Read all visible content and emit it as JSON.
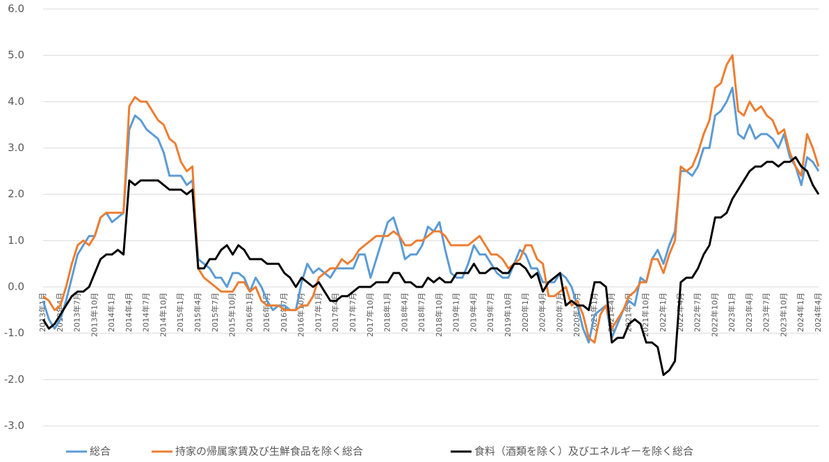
{
  "chart_data": {
    "type": "line",
    "categories": [
      "2013年1月",
      null,
      null,
      "2013年4月",
      null,
      null,
      "2013年7月",
      null,
      null,
      "2013年10月",
      null,
      null,
      "2014年1月",
      null,
      null,
      "2014年4月",
      null,
      null,
      "2014年7月",
      null,
      null,
      "2014年10月",
      null,
      null,
      "2015年1月",
      null,
      null,
      "2015年4月",
      null,
      null,
      "2015年7月",
      null,
      null,
      "2015年10月",
      null,
      null,
      "2016年1月",
      null,
      null,
      "2016年4月",
      null,
      null,
      "2016年7月",
      null,
      null,
      "2016年10月",
      null,
      null,
      "2017年1月",
      null,
      null,
      "2017年4月",
      null,
      null,
      "2017年7月",
      null,
      null,
      "2017年10月",
      null,
      null,
      "2018年1月",
      null,
      null,
      "2018年4月",
      null,
      null,
      "2018年7月",
      null,
      null,
      "2018年10月",
      null,
      null,
      "2019年1月",
      null,
      null,
      "2019年4月",
      null,
      null,
      "2019年7月",
      null,
      null,
      "2019年10月",
      null,
      null,
      "2020年1月",
      null,
      null,
      "2020年4月",
      null,
      null,
      "2020年7月",
      null,
      null,
      "2020年10月",
      null,
      null,
      "2021年1月",
      null,
      null,
      "2021年4月",
      null,
      null,
      "2021年7月",
      null,
      null,
      "2021年10月",
      null,
      null,
      "2022年1月",
      null,
      null,
      "2022年4月",
      null,
      null,
      "2022年7月",
      null,
      null,
      "2022年10月",
      null,
      null,
      "2023年1月",
      null,
      null,
      "2023年4月",
      null,
      null,
      "2023年7月",
      null,
      null,
      "2023年10月",
      null,
      null,
      "2024年1月",
      null,
      null,
      "2024年4月"
    ],
    "series": [
      {
        "name": "総合",
        "color": "#5b9bd5",
        "values": [
          -0.3,
          -0.7,
          -0.9,
          -0.7,
          -0.3,
          0.2,
          0.7,
          0.9,
          1.1,
          1.1,
          1.5,
          1.6,
          1.4,
          1.5,
          1.6,
          3.4,
          3.7,
          3.6,
          3.4,
          3.3,
          3.2,
          2.9,
          2.4,
          2.4,
          2.4,
          2.2,
          2.3,
          0.6,
          0.5,
          0.4,
          0.2,
          0.2,
          0.0,
          0.3,
          0.3,
          0.2,
          -0.1,
          0.2,
          0.0,
          -0.3,
          -0.5,
          -0.4,
          -0.4,
          -0.5,
          -0.5,
          0.1,
          0.5,
          0.3,
          0.4,
          0.3,
          0.2,
          0.4,
          0.4,
          0.4,
          0.4,
          0.7,
          0.7,
          0.2,
          0.6,
          1.0,
          1.4,
          1.5,
          1.1,
          0.6,
          0.7,
          0.7,
          0.9,
          1.3,
          1.2,
          1.4,
          0.8,
          0.3,
          0.2,
          0.2,
          0.5,
          0.9,
          0.7,
          0.7,
          0.5,
          0.3,
          0.2,
          0.2,
          0.5,
          0.8,
          0.7,
          0.4,
          0.4,
          0.1,
          0.1,
          0.1,
          0.3,
          0.2,
          0.0,
          -0.4,
          -0.9,
          -1.2,
          -0.6,
          -0.5,
          -0.4,
          -1.1,
          -0.8,
          -0.5,
          -0.3,
          -0.4,
          0.2,
          0.1,
          0.6,
          0.8,
          0.5,
          0.9,
          1.2,
          2.5,
          2.5,
          2.4,
          2.6,
          3.0,
          3.0,
          3.7,
          3.8,
          4.0,
          4.3,
          3.3,
          3.2,
          3.5,
          3.2,
          3.3,
          3.3,
          3.2,
          3.0,
          3.3,
          2.8,
          2.6,
          2.2,
          2.8,
          2.7,
          2.5
        ]
      },
      {
        "name": "持家の帰属家賃及び生鮮食品を除く総合",
        "color": "#ed7d31",
        "values": [
          -0.2,
          -0.3,
          -0.5,
          -0.4,
          0.0,
          0.5,
          0.9,
          1.0,
          0.9,
          1.1,
          1.5,
          1.6,
          1.6,
          1.6,
          1.6,
          3.9,
          4.1,
          4.0,
          4.0,
          3.8,
          3.6,
          3.5,
          3.2,
          3.1,
          2.7,
          2.5,
          2.6,
          0.4,
          0.2,
          0.1,
          0.0,
          -0.1,
          -0.1,
          -0.1,
          0.1,
          0.1,
          -0.1,
          0.0,
          -0.3,
          -0.4,
          -0.4,
          -0.4,
          -0.5,
          -0.5,
          -0.5,
          -0.4,
          -0.4,
          -0.2,
          0.2,
          0.3,
          0.4,
          0.4,
          0.6,
          0.5,
          0.6,
          0.8,
          0.9,
          1.0,
          1.1,
          1.1,
          1.1,
          1.2,
          1.1,
          0.9,
          0.9,
          1.0,
          1.0,
          1.1,
          1.2,
          1.2,
          1.1,
          0.9,
          0.9,
          0.9,
          0.9,
          1.0,
          1.1,
          0.9,
          0.7,
          0.7,
          0.6,
          0.4,
          0.5,
          0.6,
          0.9,
          0.9,
          0.6,
          0.5,
          -0.2,
          -0.2,
          -0.1,
          0.0,
          -0.4,
          -0.3,
          -0.6,
          -1.1,
          -1.2,
          -0.6,
          -0.4,
          -0.9,
          -0.7,
          -0.5,
          -0.2,
          -0.1,
          0.1,
          0.1,
          0.6,
          0.6,
          0.3,
          0.7,
          1.0,
          2.6,
          2.5,
          2.6,
          2.9,
          3.3,
          3.6,
          4.3,
          4.4,
          4.8,
          5.0,
          3.8,
          3.7,
          4.0,
          3.8,
          3.9,
          3.7,
          3.6,
          3.3,
          3.4,
          2.9,
          2.6,
          2.4,
          3.3,
          3.0,
          2.6
        ]
      },
      {
        "name": "食料（酒類を除く）及びエネルギーを除く総合",
        "color": "#000000",
        "values": [
          -0.7,
          -0.9,
          -0.8,
          -0.6,
          -0.4,
          -0.2,
          -0.1,
          -0.1,
          0.0,
          0.3,
          0.6,
          0.7,
          0.7,
          0.8,
          0.7,
          2.3,
          2.2,
          2.3,
          2.3,
          2.3,
          2.3,
          2.2,
          2.1,
          2.1,
          2.1,
          2.0,
          2.1,
          0.4,
          0.4,
          0.6,
          0.6,
          0.8,
          0.9,
          0.7,
          0.9,
          0.8,
          0.6,
          0.6,
          0.6,
          0.5,
          0.5,
          0.5,
          0.3,
          0.2,
          0.0,
          0.2,
          0.1,
          0.0,
          0.1,
          -0.1,
          -0.3,
          -0.3,
          -0.2,
          -0.2,
          -0.1,
          0.0,
          0.0,
          0.0,
          0.1,
          0.1,
          0.1,
          0.3,
          0.3,
          0.1,
          0.1,
          0.0,
          0.0,
          0.2,
          0.1,
          0.2,
          0.1,
          0.1,
          0.3,
          0.3,
          0.3,
          0.5,
          0.3,
          0.3,
          0.4,
          0.4,
          0.3,
          0.3,
          0.5,
          0.5,
          0.4,
          0.2,
          0.3,
          -0.1,
          0.1,
          0.2,
          0.3,
          -0.4,
          -0.3,
          -0.4,
          -0.4,
          -0.5,
          0.1,
          0.1,
          0.0,
          -1.2,
          -1.1,
          -1.1,
          -0.8,
          -0.7,
          -0.8,
          -1.2,
          -1.2,
          -1.3,
          -1.9,
          -1.8,
          -1.6,
          0.1,
          0.2,
          0.2,
          0.4,
          0.7,
          0.9,
          1.5,
          1.5,
          1.6,
          1.9,
          2.1,
          2.3,
          2.5,
          2.6,
          2.6,
          2.7,
          2.7,
          2.6,
          2.7,
          2.7,
          2.8,
          2.6,
          2.5,
          2.2,
          2.0
        ]
      }
    ],
    "ylim": [
      -3,
      6
    ],
    "yticks": [
      {
        "value": -3,
        "label": "-3.0"
      },
      {
        "value": -2,
        "label": "-2.0"
      },
      {
        "value": -1,
        "label": "-1.0"
      },
      {
        "value": 0,
        "label": "0.0"
      },
      {
        "value": 1,
        "label": "1.0"
      },
      {
        "value": 2,
        "label": "2.0"
      },
      {
        "value": 3,
        "label": "3.0"
      },
      {
        "value": 4,
        "label": "4.0"
      },
      {
        "value": 5,
        "label": "5.0"
      },
      {
        "value": 6,
        "label": "6.0"
      }
    ],
    "grid": true,
    "legend": "bottom"
  }
}
